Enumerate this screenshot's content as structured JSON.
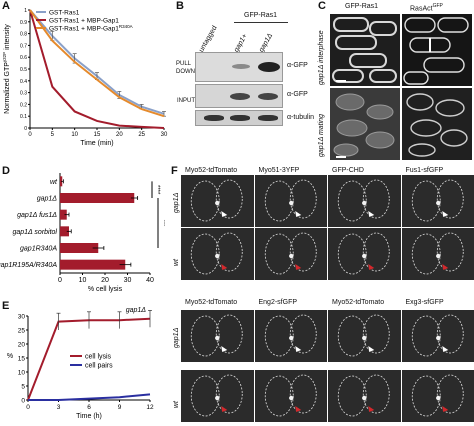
{
  "panels": {
    "A": {
      "letter": "A",
      "chart_data": {
        "type": "line",
        "x": [
          0,
          5,
          10,
          15,
          20,
          25,
          30
        ],
        "xlabel": "Time (min)",
        "ylabel": "Normalized GTP",
        "ylabel_sup": "γ32P",
        "ylabel_tail": " intensity",
        "xlim": [
          0,
          30
        ],
        "ylim": [
          0,
          1
        ],
        "xticks": [
          "0",
          "5",
          "10",
          "15",
          "20",
          "25",
          "30"
        ],
        "yticks": [
          "0",
          "0.1",
          "0.2",
          "0.3",
          "0.4",
          "0.5",
          "0.6",
          "0.7",
          "0.8",
          "0.9",
          "1"
        ],
        "legend": [
          "GST-Ras1",
          "GST-Ras1 + MBP-Gap1",
          "GST-Ras1 + MBP-Gap1"
        ],
        "legend_sup": [
          "",
          "",
          "R340A"
        ],
        "series": [
          {
            "name": "GST-Ras1",
            "color": "#8aa0c8",
            "values": [
              1.0,
              0.78,
              0.59,
              0.44,
              0.28,
              0.18,
              0.12
            ]
          },
          {
            "name": "GST-Ras1 + MBP-Gap1",
            "color": "#a31c2c",
            "values": [
              1.0,
              0.35,
              0.14,
              0.06,
              0.02,
              0.01,
              0.0
            ]
          },
          {
            "name": "GST-Ras1 + MBP-Gap1R340A",
            "color": "#e58a2c",
            "values": [
              1.0,
              0.74,
              0.56,
              0.41,
              0.26,
              0.16,
              0.1
            ]
          }
        ],
        "errors": [
          0,
          0.04,
          0.04,
          0.03,
          0.03,
          0.02,
          0.02
        ]
      }
    },
    "B": {
      "letter": "B",
      "header": "GFP-Ras1",
      "lanes": [
        "untagged",
        "gap1+",
        "gap1Δ"
      ],
      "section_pull": "PULL\nDOWN",
      "section_input": "INPUT",
      "blot_labels": [
        "α-GFP",
        "α-GFP",
        "α-tubulin"
      ]
    },
    "C": {
      "letter": "C",
      "cols": [
        "GFP-Ras1",
        "RasAct"
      ],
      "col_sup": [
        "",
        "GFP"
      ],
      "rows": [
        "gap1Δ interphase",
        "gap1Δ mating"
      ]
    },
    "D": {
      "letter": "D",
      "chart_data": {
        "type": "bar",
        "orientation": "horizontal",
        "categories": [
          "wt",
          "gap1Δ",
          "gap1Δ fus1Δ",
          "gap1Δ sorbitol",
          "gap1R340A",
          "gap1R195A/R340A"
        ],
        "values": [
          1,
          33,
          3,
          4,
          17,
          29
        ],
        "errors": [
          0.5,
          1.5,
          1.0,
          1.0,
          2.5,
          2.5
        ],
        "xlabel": "% cell lysis",
        "xticks": [
          "0",
          "10",
          "20",
          "30",
          "40"
        ],
        "xlim": [
          0,
          40
        ],
        "color": "#a31c2c"
      },
      "signif": [
        "****",
        "***"
      ]
    },
    "E": {
      "letter": "E",
      "chart_data": {
        "type": "line",
        "title": "gap1Δ",
        "x": [
          0,
          3,
          6,
          9,
          12
        ],
        "xlabel": "Time (h)",
        "ylabel": "%",
        "xticks": [
          "0",
          "3",
          "6",
          "9",
          "12"
        ],
        "yticks": [
          "0",
          "5",
          "10",
          "15",
          "20",
          "25",
          "30"
        ],
        "xlim": [
          0,
          12
        ],
        "ylim": [
          0,
          30
        ],
        "series": [
          {
            "name": "cell lysis",
            "color": "#a31c2c",
            "values": [
              0,
              28,
              28.5,
              28.5,
              29
            ]
          },
          {
            "name": "cell pairs",
            "color": "#2a2fa0",
            "values": [
              0,
              0,
              0.5,
              1,
              2
            ]
          }
        ]
      }
    },
    "F": {
      "letter": "F",
      "top_cols": [
        "Myo52-tdTomato",
        "Myo51-3YFP",
        "GFP-CHD",
        "Fus1-sfGFP"
      ],
      "bottom_cols": [
        "Myo52-tdTomato",
        "Eng2-sfGFP",
        "Myo52-tdTomato",
        "Exg3-sfGFP"
      ],
      "rows": [
        "gap1Δ",
        "wt",
        "gap1Δ",
        "wt"
      ]
    }
  }
}
